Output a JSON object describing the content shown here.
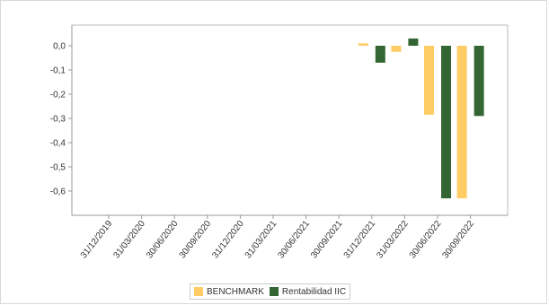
{
  "chart_data": {
    "type": "bar",
    "categories": [
      "31/12/2019",
      "31/03/2020",
      "30/06/2020",
      "30/09/2020",
      "31/12/2020",
      "31/03/2021",
      "30/06/2021",
      "30/09/2021",
      "31/12/2021",
      "31/03/2022",
      "30/06/2022",
      "30/09/2022"
    ],
    "series": [
      {
        "name": "BENCHMARK",
        "color": "#ffcc66",
        "values": [
          null,
          null,
          null,
          null,
          null,
          null,
          null,
          null,
          0.01,
          -0.025,
          -0.285,
          -0.63
        ]
      },
      {
        "name": "Rentabilidad IIC",
        "color": "#336633",
        "values": [
          null,
          null,
          null,
          null,
          null,
          null,
          null,
          null,
          -0.07,
          0.03,
          -0.63,
          -0.29
        ]
      }
    ],
    "ylim": [
      -0.7,
      0.1
    ],
    "yticks": [
      0.0,
      -0.1,
      -0.2,
      -0.3,
      -0.4,
      -0.5,
      -0.6
    ],
    "ytick_labels": [
      "0,0",
      "-0,1",
      "-0,2",
      "-0,3",
      "-0,4",
      "-0,5",
      "-0,6"
    ],
    "grid": false,
    "legend_position": "bottom"
  }
}
